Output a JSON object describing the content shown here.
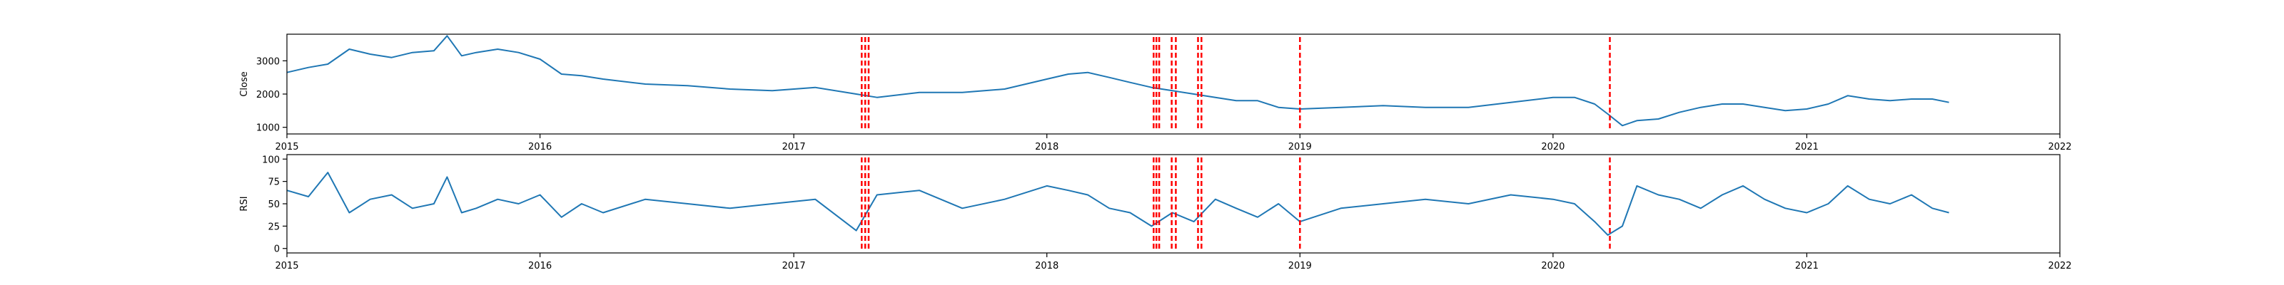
{
  "chart_data": [
    {
      "type": "line",
      "ylabel": "Close",
      "xlim": [
        "2015-01-01",
        "2022-01-01"
      ],
      "ylim": [
        800,
        3800
      ],
      "yticks": [
        1000,
        2000,
        3000
      ],
      "xticks": [
        "2015",
        "2016",
        "2017",
        "2018",
        "2019",
        "2020",
        "2021",
        "2022"
      ],
      "series": [
        {
          "x": [
            "2015-01-01",
            "2015-02-01",
            "2015-03-01",
            "2015-04-01",
            "2015-05-01",
            "2015-06-01",
            "2015-07-01",
            "2015-08-01",
            "2015-08-20",
            "2015-09-10",
            "2015-10-01",
            "2015-11-01",
            "2015-12-01",
            "2016-01-01",
            "2016-02-01",
            "2016-03-01",
            "2016-04-01",
            "2016-06-01",
            "2016-08-01",
            "2016-10-01",
            "2016-12-01",
            "2017-02-01",
            "2017-04-01",
            "2017-05-01",
            "2017-07-01",
            "2017-09-01",
            "2017-11-01",
            "2018-01-01",
            "2018-02-01",
            "2018-03-01",
            "2018-04-01",
            "2018-05-01",
            "2018-06-01",
            "2018-07-01",
            "2018-08-01",
            "2018-09-01",
            "2018-10-01",
            "2018-11-01",
            "2018-12-01",
            "2019-01-01",
            "2019-03-01",
            "2019-05-01",
            "2019-07-01",
            "2019-09-01",
            "2019-11-01",
            "2020-01-01",
            "2020-02-01",
            "2020-03-01",
            "2020-03-20",
            "2020-04-10",
            "2020-05-01",
            "2020-06-01",
            "2020-07-01",
            "2020-08-01",
            "2020-09-01",
            "2020-10-01",
            "2020-11-01",
            "2020-12-01",
            "2021-01-01",
            "2021-02-01",
            "2021-03-01",
            "2021-04-01",
            "2021-05-01",
            "2021-06-01",
            "2021-07-01",
            "2021-07-25"
          ],
          "values": [
            2650,
            2800,
            2900,
            3350,
            3200,
            3100,
            3250,
            3300,
            3750,
            3150,
            3250,
            3350,
            3250,
            3050,
            2600,
            2550,
            2450,
            2300,
            2250,
            2150,
            2100,
            2200,
            2000,
            1900,
            2050,
            2050,
            2150,
            2450,
            2600,
            2650,
            2500,
            2350,
            2200,
            2100,
            2000,
            1900,
            1800,
            1800,
            1600,
            1550,
            1600,
            1650,
            1600,
            1600,
            1750,
            1900,
            1900,
            1700,
            1400,
            1050,
            1200,
            1250,
            1450,
            1600,
            1700,
            1700,
            1600,
            1500,
            1550,
            1700,
            1950,
            1850,
            1800,
            1850,
            1850,
            1750
          ]
        }
      ]
    },
    {
      "type": "line",
      "ylabel": "RSI",
      "xlim": [
        "2015-01-01",
        "2022-01-01"
      ],
      "ylim": [
        -5,
        105
      ],
      "yticks": [
        0,
        25,
        50,
        75,
        100
      ],
      "xticks": [
        "2015",
        "2016",
        "2017",
        "2018",
        "2019",
        "2020",
        "2021",
        "2022"
      ],
      "series": [
        {
          "x": [
            "2015-01-01",
            "2015-02-01",
            "2015-03-01",
            "2015-04-01",
            "2015-05-01",
            "2015-06-01",
            "2015-07-01",
            "2015-08-01",
            "2015-08-20",
            "2015-09-10",
            "2015-10-01",
            "2015-11-01",
            "2015-12-01",
            "2016-01-01",
            "2016-02-01",
            "2016-03-01",
            "2016-04-01",
            "2016-06-01",
            "2016-08-01",
            "2016-10-01",
            "2016-12-01",
            "2017-02-01",
            "2017-04-01",
            "2017-05-01",
            "2017-07-01",
            "2017-09-01",
            "2017-11-01",
            "2018-01-01",
            "2018-02-01",
            "2018-03-01",
            "2018-04-01",
            "2018-05-01",
            "2018-06-01",
            "2018-07-01",
            "2018-08-01",
            "2018-09-01",
            "2018-10-01",
            "2018-11-01",
            "2018-12-01",
            "2019-01-01",
            "2019-03-01",
            "2019-05-01",
            "2019-07-01",
            "2019-09-01",
            "2019-11-01",
            "2020-01-01",
            "2020-02-01",
            "2020-03-01",
            "2020-03-20",
            "2020-04-10",
            "2020-05-01",
            "2020-06-01",
            "2020-07-01",
            "2020-08-01",
            "2020-09-01",
            "2020-10-01",
            "2020-11-01",
            "2020-12-01",
            "2021-01-01",
            "2021-02-01",
            "2021-03-01",
            "2021-04-01",
            "2021-05-01",
            "2021-06-01",
            "2021-07-01",
            "2021-07-25"
          ],
          "values": [
            65,
            58,
            85,
            40,
            55,
            60,
            45,
            50,
            80,
            40,
            45,
            55,
            50,
            60,
            35,
            50,
            40,
            55,
            50,
            45,
            50,
            55,
            20,
            60,
            65,
            45,
            55,
            70,
            65,
            60,
            45,
            40,
            25,
            40,
            30,
            55,
            45,
            35,
            50,
            30,
            45,
            50,
            55,
            50,
            60,
            55,
            50,
            30,
            15,
            25,
            70,
            60,
            55,
            45,
            60,
            70,
            55,
            45,
            40,
            50,
            70,
            55,
            50,
            60,
            45,
            40
          ]
        }
      ]
    }
  ],
  "events": [
    "2017-04-09",
    "2017-04-14",
    "2017-04-19",
    "2018-06-04",
    "2018-06-08",
    "2018-06-12",
    "2018-06-30",
    "2018-07-06",
    "2018-08-07",
    "2018-08-12",
    "2019-01-01",
    "2020-03-23"
  ],
  "colors": {
    "line": "#1f77b4",
    "event": "#ff0000",
    "axis": "#000000"
  }
}
